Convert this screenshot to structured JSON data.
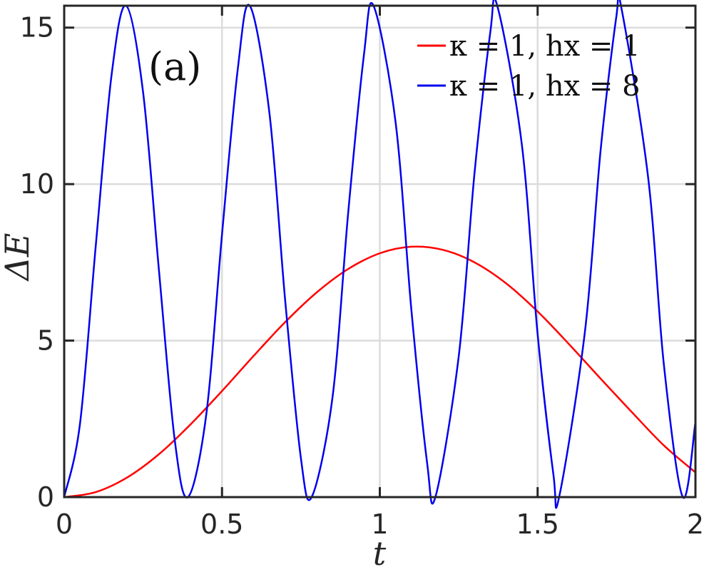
{
  "chart_data": {
    "type": "line",
    "xlabel": "t",
    "ylabel": "ΔE",
    "xlim": [
      0,
      2
    ],
    "ylim": [
      0,
      15.7
    ],
    "xticks": [
      0,
      0.5,
      1,
      1.5,
      2
    ],
    "xtick_labels": [
      "0",
      "0.5",
      "1",
      "1.5",
      "2"
    ],
    "yticks": [
      0,
      5,
      10,
      15
    ],
    "ytick_labels": [
      "0",
      "5",
      "10",
      "15"
    ],
    "grid": true,
    "annotation": "(a)",
    "legend_position": "top-right",
    "series": [
      {
        "name": "κ = 1,  hx = 1",
        "color": "#ff0000",
        "x": [
          0,
          0.1,
          0.2,
          0.3,
          0.4,
          0.5,
          0.6,
          0.7,
          0.8,
          0.9,
          1.0,
          1.1,
          1.2,
          1.3,
          1.4,
          1.5,
          1.6,
          1.7,
          1.8,
          1.9,
          2.0
        ],
        "y": [
          0,
          0.16,
          0.63,
          1.37,
          2.32,
          3.39,
          4.51,
          5.59,
          6.54,
          7.29,
          7.79,
          8.0,
          7.9,
          7.5,
          6.83,
          5.93,
          4.88,
          3.78,
          2.7,
          1.65,
          0.79
        ]
      },
      {
        "name": "κ = 1,  hx = 8",
        "color": "#0000ee",
        "x": [
          0,
          0.05,
          0.1,
          0.15,
          0.196,
          0.25,
          0.3,
          0.35,
          0.392,
          0.45,
          0.5,
          0.55,
          0.588,
          0.65,
          0.7,
          0.75,
          0.784,
          0.85,
          0.9,
          0.95,
          0.98,
          1.05,
          1.1,
          1.15,
          1.176,
          1.25,
          1.3,
          1.35,
          1.372,
          1.45,
          1.5,
          1.55,
          1.568,
          1.65,
          1.7,
          1.75,
          1.764,
          1.85,
          1.9,
          1.96,
          2.0
        ],
        "y": [
          0,
          2.34,
          8.03,
          13.48,
          15.7,
          12.93,
          7.27,
          1.84,
          0,
          2.63,
          8.39,
          13.68,
          15.7,
          12.29,
          6.3,
          1.24,
          0,
          3.18,
          9.11,
          14.16,
          15.7,
          11.97,
          5.98,
          1.08,
          0,
          4.5,
          10.35,
          14.85,
          15.7,
          11.26,
          5.2,
          0.72,
          0,
          5.3,
          11.13,
          15.4,
          15.7,
          10.22,
          4.23,
          0,
          2.4
        ]
      }
    ]
  }
}
